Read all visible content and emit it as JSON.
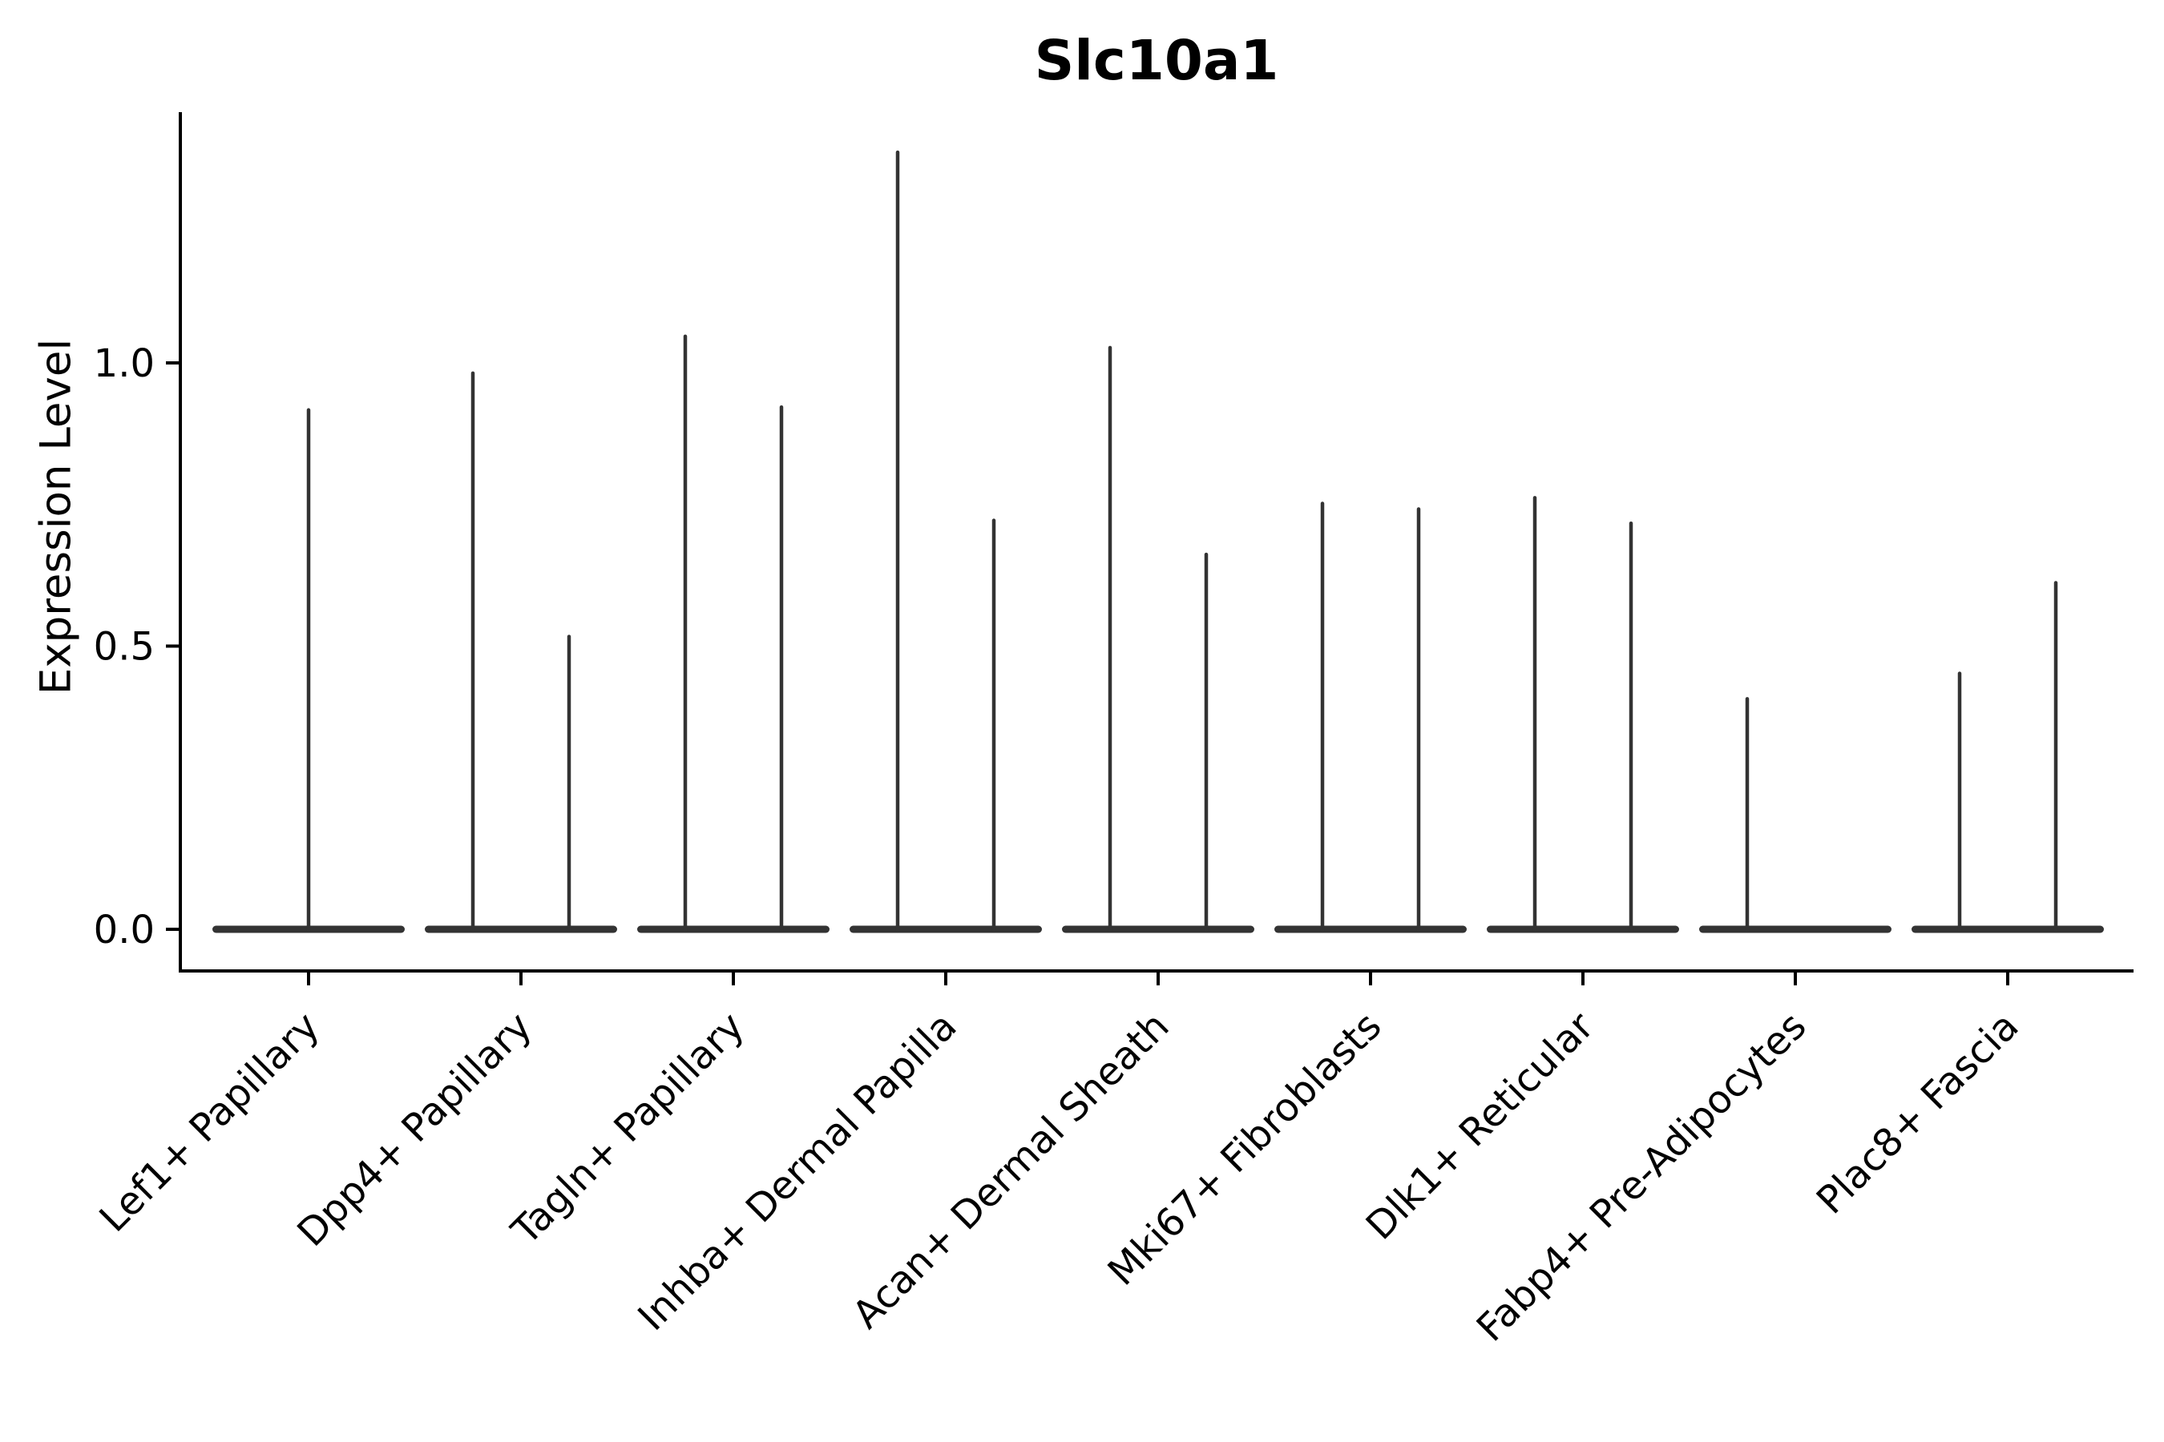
{
  "figure": {
    "title": "Slc10a1",
    "background_color": "#ffffff"
  },
  "chart_data": {
    "type": "violin",
    "title": "Slc10a1",
    "xlabel": "",
    "ylabel": "Expression Level",
    "yticks": [
      0.0,
      0.5,
      1.0
    ],
    "ytick_labels": [
      "0.0",
      "0.5",
      "1.0"
    ],
    "ylim": [
      -0.07,
      1.44
    ],
    "grid": false,
    "legend": false,
    "x_tick_label_rotation_deg": 45,
    "categories": [
      "Lef1+ Papillary",
      "Dpp4+ Papillary",
      "Tagln+ Papillary",
      "Inhba+ Dermal Papilla",
      "Acan+ Dermal Sheath",
      "Mki67+ Fibroblasts",
      "Dlk1+ Reticular",
      "Fabp4+ Pre-Adipocytes",
      "Plac8+ Fascia"
    ],
    "violins": [
      {
        "category": "Lef1+ Papillary",
        "spikes": [
          {
            "position": "center",
            "max": 0.92
          }
        ]
      },
      {
        "category": "Dpp4+ Papillary",
        "spikes": [
          {
            "position": "left",
            "max": 0.985
          },
          {
            "position": "right",
            "max": 0.52
          }
        ]
      },
      {
        "category": "Tagln+ Papillary",
        "spikes": [
          {
            "position": "left",
            "max": 1.05
          },
          {
            "position": "right",
            "max": 0.925
          }
        ]
      },
      {
        "category": "Inhba+ Dermal Papilla",
        "spikes": [
          {
            "position": "left",
            "max": 1.375
          },
          {
            "position": "right",
            "max": 0.725
          }
        ]
      },
      {
        "category": "Acan+ Dermal Sheath",
        "spikes": [
          {
            "position": "left",
            "max": 1.03
          },
          {
            "position": "right",
            "max": 0.665
          }
        ]
      },
      {
        "category": "Mki67+ Fibroblasts",
        "spikes": [
          {
            "position": "left",
            "max": 0.755
          },
          {
            "position": "right",
            "max": 0.745
          }
        ]
      },
      {
        "category": "Dlk1+ Reticular",
        "spikes": [
          {
            "position": "left",
            "max": 0.765
          },
          {
            "position": "right",
            "max": 0.72
          }
        ]
      },
      {
        "category": "Fabp4+ Pre-Adipocytes",
        "spikes": [
          {
            "position": "left",
            "max": 0.41
          }
        ]
      },
      {
        "category": "Plac8+ Fascia",
        "spikes": [
          {
            "position": "left",
            "max": 0.455
          },
          {
            "position": "right",
            "max": 0.615
          }
        ]
      }
    ],
    "baseline_value": 0.0,
    "colors": {
      "violin": "#333333",
      "axis": "#000000",
      "text": "#000000",
      "background": "#ffffff"
    }
  }
}
